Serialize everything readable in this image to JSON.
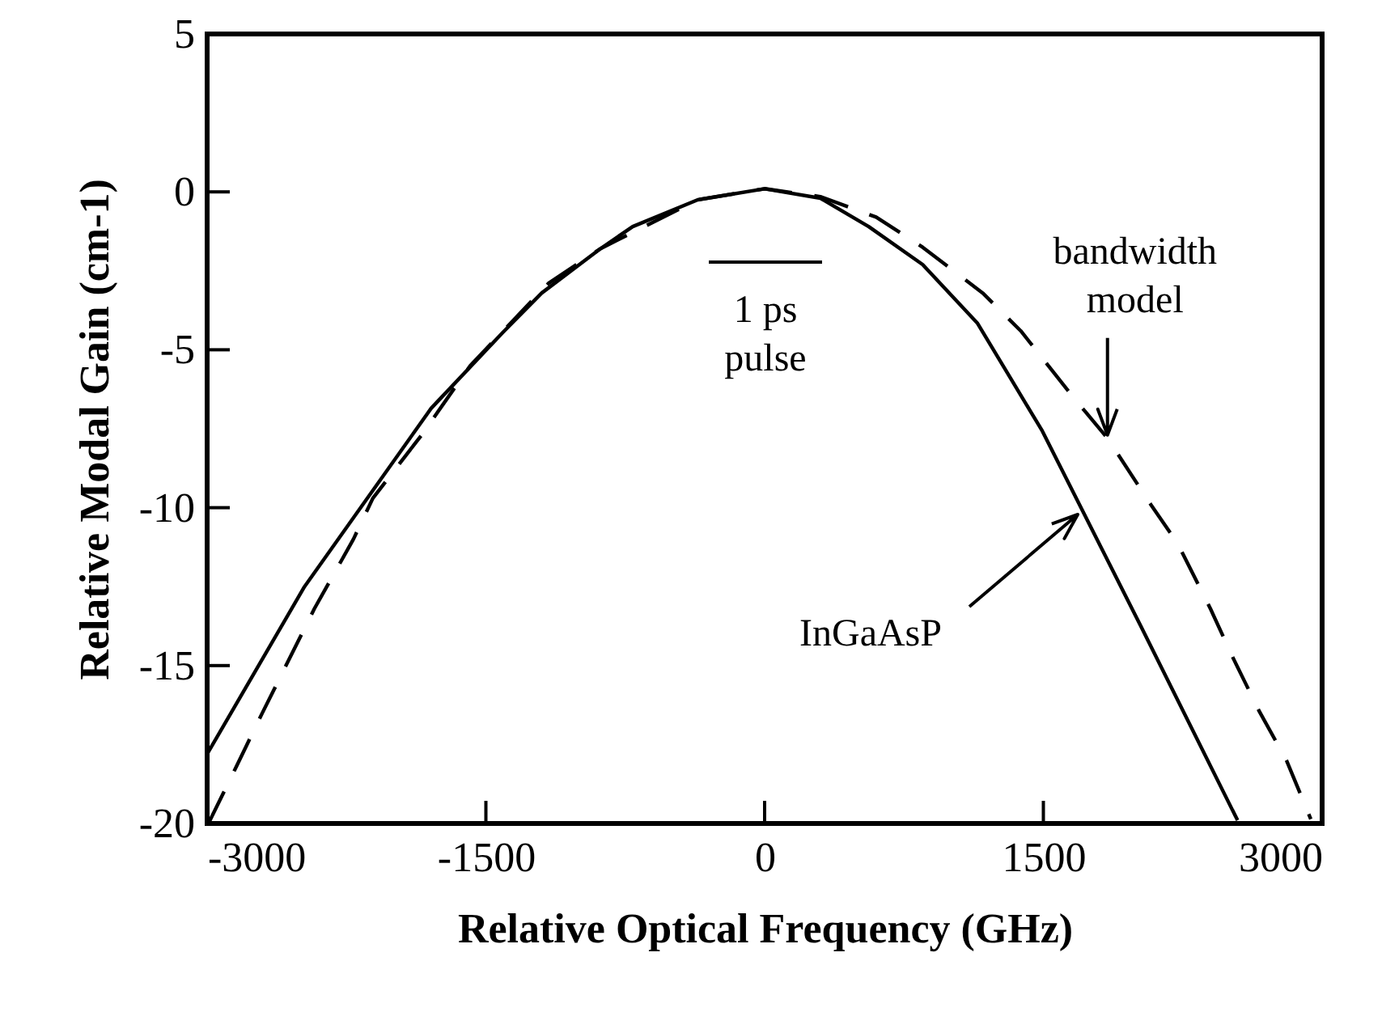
{
  "chart_data": {
    "type": "line",
    "xlabel": "Relative Optical Frequency (GHz)",
    "ylabel": "Relative Modal Gain (cm-1)",
    "xlim": [
      -3000,
      3000
    ],
    "xticks": [
      -3000,
      -1500,
      0,
      1500,
      3000
    ],
    "ylim": [
      -20,
      5
    ],
    "yticks": [
      5,
      0,
      -5,
      -10,
      -15,
      -20
    ],
    "grid": false,
    "marker": "none",
    "series": [
      {
        "color": "#000000",
        "line_style": "solid",
        "x": [
          -3000,
          -2476,
          -1794,
          -1409,
          -1199,
          -884,
          -710,
          -360,
          0,
          300,
          560,
          850,
          1144,
          1319,
          1494,
          1699,
          2020,
          2545
        ],
        "values": [
          -17.8,
          -12.5,
          -6.85,
          -4.45,
          -3.2,
          -1.8,
          -1.1,
          -0.25,
          0.1,
          -0.2,
          -1.1,
          -2.3,
          -4.15,
          -5.86,
          -7.57,
          -9.96,
          -13.7,
          -19.9
        ]
      },
      {
        "color": "#000000",
        "line_style": "dashed",
        "x": [
          -2993,
          -2843,
          -2703,
          -2423,
          -2213,
          -2108,
          -1846,
          -1584,
          -1164,
          -884,
          -360,
          0,
          300,
          600,
          852,
          1173,
          1378,
          1655,
          1845,
          2078,
          2224,
          2399,
          2516,
          2662,
          2808,
          2939
        ],
        "values": [
          -20,
          -18.2,
          -16.5,
          -13.2,
          -11.0,
          -9.7,
          -7.7,
          -5.5,
          -2.9,
          -1.8,
          -0.25,
          0.1,
          -0.15,
          -0.8,
          -1.76,
          -3.2,
          -4.4,
          -6.46,
          -7.8,
          -9.9,
          -11.15,
          -13.2,
          -14.7,
          -16.45,
          -18.0,
          -19.86
        ]
      }
    ],
    "annotations": [
      "1 ps\npulse",
      {
        "text": "bandwidth\nmodel",
        "x": 1845,
        "y": -7.7
      },
      "InGaAsP"
    ]
  }
}
